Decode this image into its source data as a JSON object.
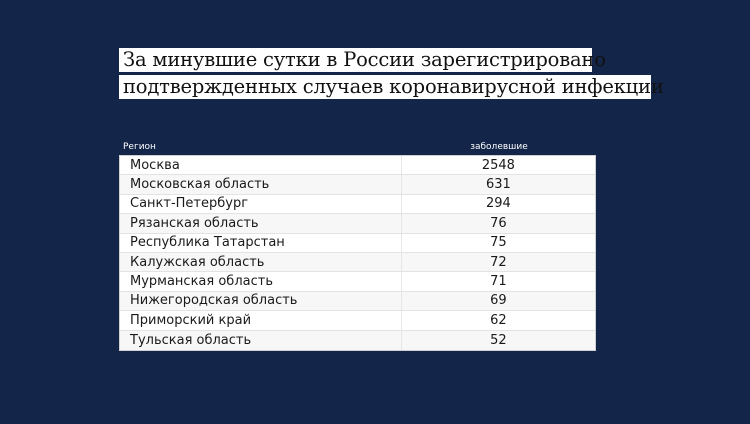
{
  "colors": {
    "background": "#13264a",
    "title_bg": "#ffffff",
    "row_alt_bg": "#f7f7f7",
    "row_border": "#e3e3e3"
  },
  "title": {
    "line1": "За минувшие сутки в России зарегистрировано",
    "line2": "подтвержденных случаев коронавирусной инфекции"
  },
  "table": {
    "headers": {
      "region": "Регион",
      "cases": "заболевшие"
    },
    "rows": [
      {
        "region": "Москва",
        "cases": "2548"
      },
      {
        "region": "Московская область",
        "cases": "631"
      },
      {
        "region": "Санкт-Петербург",
        "cases": "294"
      },
      {
        "region": "Рязанская область",
        "cases": "76"
      },
      {
        "region": "Республика Татарстан",
        "cases": "75"
      },
      {
        "region": "Калужская область",
        "cases": "72"
      },
      {
        "region": "Мурманская область",
        "cases": "71"
      },
      {
        "region": "Нижегородская область",
        "cases": "69"
      },
      {
        "region": "Приморский край",
        "cases": "62"
      },
      {
        "region": "Тульская область",
        "cases": "52"
      }
    ]
  }
}
